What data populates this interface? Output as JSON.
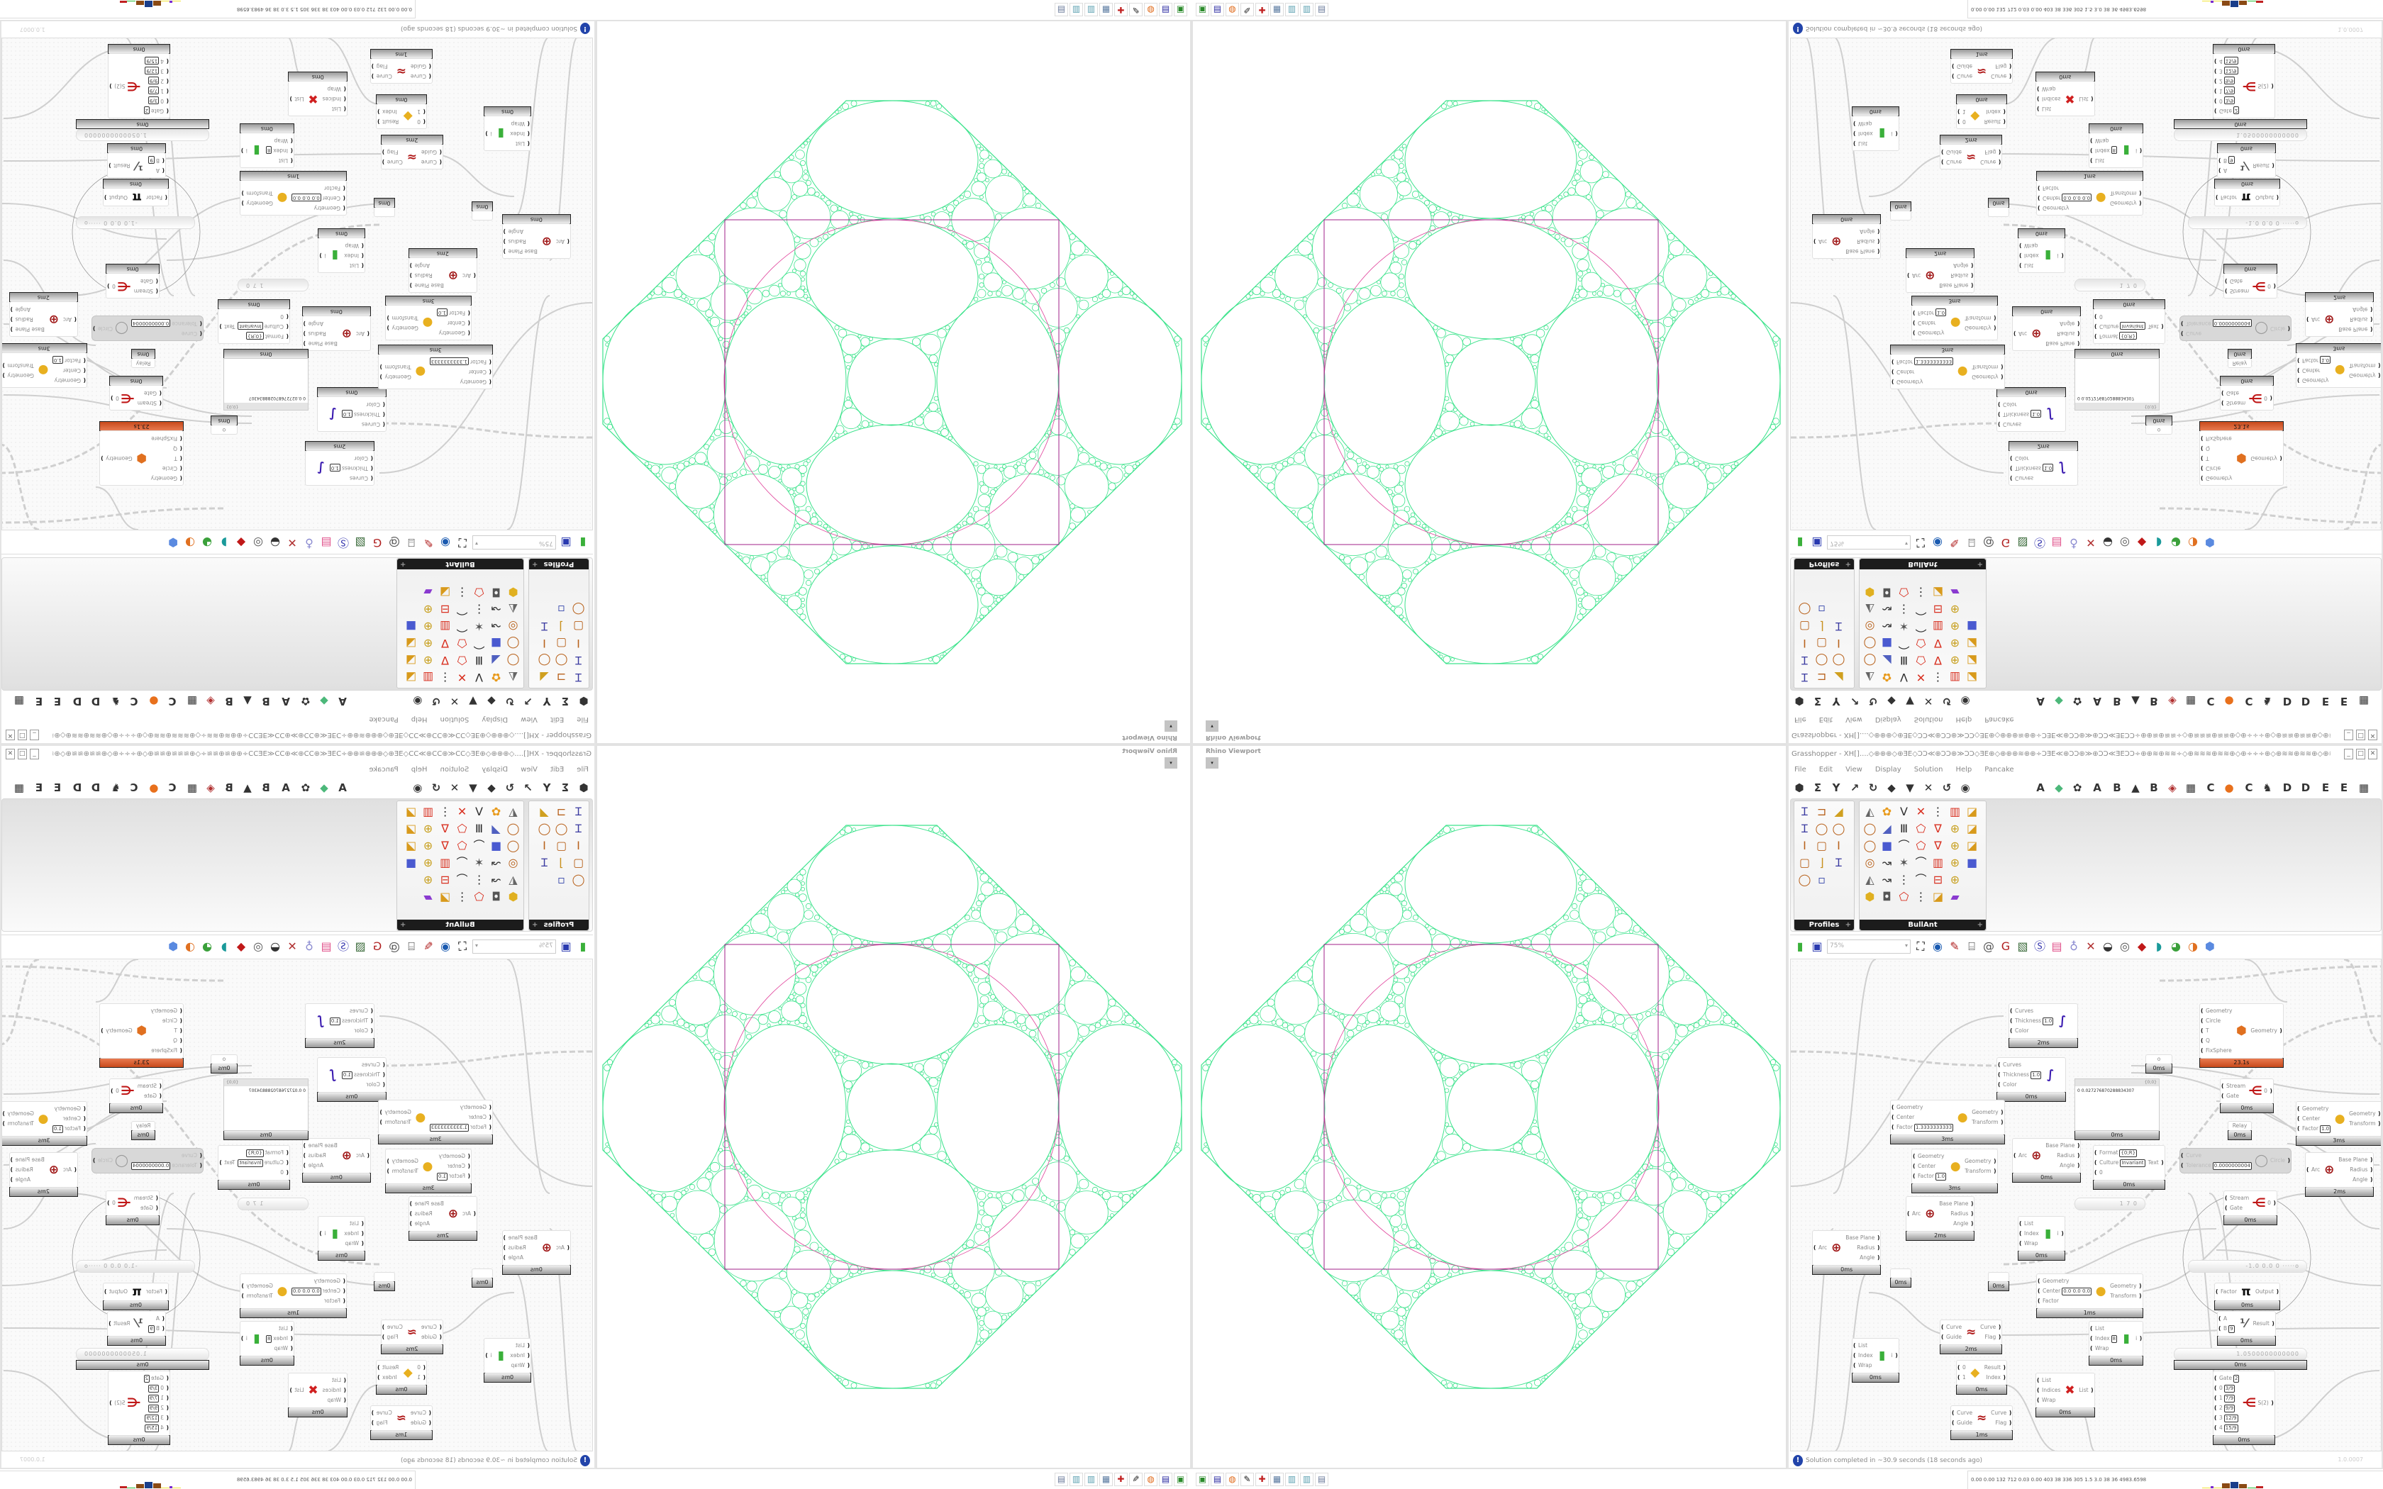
{
  "viewport": {
    "title": "Rhino Viewport",
    "dropdown": "▾"
  },
  "window": {
    "title": "Grasshopper - XH[]....◇⊕⊕⊕◇⊕ƎE◇ƆƆ≪⊕ƆƆ⊕≫ƆƆ◇ƎE⊕◇⊕⊕⊕≋⊕⊕÷ƆƎE≪⊕ƆƆ⊕≫⊕ƆƆ≪ƎEƆƆ÷⊕⊕≋⊕≋≋÷◇⊕≋≋≋⊕≋≋⊕◇⊕÷÷÷⊕◇⊕≋≋⊕≋≋⊕◇⊕≋≋⊕⊕÷ƆƎE≪⊕ƆƆ⊕⊕...",
    "buttons": {
      "minimize": "_",
      "maximize": "□",
      "close": "✕"
    }
  },
  "menu": [
    "File",
    "Edit",
    "View",
    "Display",
    "Solution",
    "Help",
    "Pancake"
  ],
  "tab_row": [
    {
      "icon": "hexagon-icon",
      "glyph": "⬢"
    },
    {
      "icon": "sigma-icon",
      "glyph": "Σ"
    },
    {
      "icon": "vector-icon",
      "glyph": "Y"
    },
    {
      "icon": "arrow-icon",
      "glyph": "↗"
    },
    {
      "icon": "curve-icon",
      "glyph": "↻"
    },
    {
      "icon": "surface-icon",
      "glyph": "◆"
    },
    {
      "icon": "mesh-icon",
      "glyph": "▼"
    },
    {
      "icon": "intersect-icon",
      "glyph": "✕"
    },
    {
      "icon": "transform-icon",
      "glyph": "↺"
    },
    {
      "icon": "display-icon",
      "glyph": "◉"
    },
    {
      "label": "A"
    },
    {
      "icon": "crystal-icon",
      "glyph": "◆"
    },
    {
      "icon": "kangaroo-paw-icon",
      "glyph": "✿"
    },
    {
      "label": "A"
    },
    {
      "label": "B"
    },
    {
      "icon": "mountain-icon",
      "glyph": "▲"
    },
    {
      "label": "B"
    },
    {
      "icon": "shield-icon",
      "glyph": "◈"
    },
    {
      "icon": "grid-icon",
      "glyph": "▦"
    },
    {
      "label": "C"
    },
    {
      "icon": "orange-circle-icon",
      "glyph": "●"
    },
    {
      "label": "C"
    },
    {
      "icon": "chicken-icon",
      "glyph": "♞"
    },
    {
      "label": "D"
    },
    {
      "label": "D"
    },
    {
      "label": "E"
    },
    {
      "label": "E"
    },
    {
      "icon": "grid-icon",
      "glyph": "▦"
    }
  ],
  "ribbon": {
    "profiles": {
      "label": "Profiles",
      "icons": [
        "section-tool",
        "c-channel",
        "hollow-section",
        "section-tool",
        "ring",
        "ring",
        "i-beam",
        "rect-tube",
        "i-beam",
        "rect-tube",
        "angle",
        "section-tool",
        "ring",
        "points"
      ]
    },
    "bullant": {
      "label": "BullAnt",
      "icons": [
        "box-cone",
        "flower",
        "split-v",
        "intersect",
        "segment",
        "frame",
        "panel",
        "ring",
        "plane",
        "columns",
        "polygon",
        "truss",
        "lock",
        "panel",
        "ring",
        "cube",
        "polyline",
        "polygon",
        "truss",
        "lock",
        "panel",
        "ring-ball",
        "curve-pt",
        "explode",
        "polyline",
        "frame",
        "lock",
        "cube",
        "box-cone",
        "curve-pt",
        "segment",
        "polyline",
        "frame-eq",
        "lock",
        "blank",
        "hex",
        "pad",
        "polygon",
        "segment",
        "panel",
        "rainbow",
        "blank"
      ]
    }
  },
  "canvas_toolbar": {
    "zoom": "75%",
    "items": [
      "new-file-icon",
      "save-icon",
      "zoom-extents-icon",
      "preview-icon",
      "sketch-icon",
      "cluster-icon",
      "at-icon",
      "gha-icon",
      "image-icon",
      "search-icon",
      "package-icon",
      "bulb-icon",
      "dna-icon",
      "shaded-icon",
      "wire-icon",
      "red-gem-icon",
      "teal-icon",
      "green-icon",
      "orange-sphere-icon",
      "blue-sphere-icon"
    ]
  },
  "canvas": {
    "nodes": [
      {
        "name": "custom-preview",
        "inputs": [
          "Curves",
          "Thickness",
          "Color"
        ],
        "outputs": [],
        "values": {
          "Thickness": "1.0"
        },
        "icon": "curve-display",
        "time": "2ms"
      },
      {
        "name": "custom-preview",
        "inputs": [
          "Curves",
          "Thickness",
          "Color"
        ],
        "outputs": [],
        "values": {
          "Thickness": "1.0"
        },
        "icon": "curve-display",
        "time": "0ms"
      },
      {
        "name": "scale",
        "inputs": [
          "Geometry",
          "Center",
          "Factor"
        ],
        "outputs": [
          "Geometry",
          "Transform"
        ],
        "values": {
          "Factor": "1.3333333333"
        },
        "icon": "scale",
        "time": "3ms"
      },
      {
        "name": "scale",
        "inputs": [
          "Geometry",
          "Center",
          "Factor"
        ],
        "outputs": [
          "Geometry",
          "Transform"
        ],
        "values": {
          "Factor": "1.0"
        },
        "icon": "scale",
        "time": "3ms"
      },
      {
        "name": "deconstruct-arc",
        "inputs": [
          "Arc"
        ],
        "outputs": [
          "Base Plane",
          "Radius",
          "Angle"
        ],
        "icon": "arc",
        "time": "0ms"
      },
      {
        "name": "deconstruct-arc",
        "inputs": [
          "Arc"
        ],
        "outputs": [
          "Base Plane",
          "Radius",
          "Angle"
        ],
        "icon": "arc",
        "time": "2ms"
      },
      {
        "name": "panel",
        "panel": {
          "header": "{0;0}",
          "text": "0  0.027276870288834307"
        },
        "time": "0ms"
      },
      {
        "name": "kangaroo-solver",
        "inputs": [
          "Geometry",
          "Circle",
          "T",
          "Q",
          "FixSphere"
        ],
        "outputs": [
          "Geometry"
        ],
        "icon": "kangaroo",
        "time": "23.1s",
        "state": "warning"
      },
      {
        "name": "relay",
        "label": "o",
        "time": "0ms"
      },
      {
        "name": "stream-gate",
        "inputs": [
          "Stream",
          "Gate"
        ],
        "outputs": [
          "0"
        ],
        "icon": "gate",
        "time": "0ms"
      },
      {
        "name": "relay",
        "label": "Relay",
        "time": "0ms"
      },
      {
        "name": "format",
        "inputs": [
          "Format",
          "Culture",
          "0"
        ],
        "outputs": [
          "Text"
        ],
        "values": {
          "Format": "{0;R}",
          "Culture": "Invariant"
        },
        "time": "0ms"
      },
      {
        "name": "fit-circle",
        "inputs": [
          "Curve",
          "Tolerance"
        ],
        "outputs": [
          "Circle"
        ],
        "values": {
          "Tolerance": "0.0000000004"
        },
        "icon": "circle",
        "state": "disabled"
      },
      {
        "name": "scale",
        "inputs": [
          "Geometry",
          "Center",
          "Factor"
        ],
        "outputs": [
          "Geometry",
          "Transform"
        ],
        "values": {
          "Factor": "1.0"
        },
        "icon": "scale",
        "time": "3ms"
      },
      {
        "name": "deconstruct-arc",
        "inputs": [
          "Arc"
        ],
        "outputs": [
          "Base Plane",
          "Radius",
          "Angle"
        ],
        "icon": "arc",
        "time": "2ms"
      },
      {
        "name": "stream-gate",
        "inputs": [
          "Stream",
          "Gate"
        ],
        "outputs": [
          "0"
        ],
        "icon": "gate",
        "time": "0ms"
      },
      {
        "name": "number-slider",
        "slider": "1 7 0"
      },
      {
        "name": "deconstruct-arc",
        "inputs": [
          "Arc"
        ],
        "outputs": [
          "Base Plane",
          "Radius",
          "Angle"
        ],
        "icon": "arc",
        "time": "0ms"
      },
      {
        "name": "relay",
        "label": "",
        "time": "0ms"
      },
      {
        "name": "relay",
        "label": "",
        "time": "0ms"
      },
      {
        "name": "list-item",
        "inputs": [
          "List",
          "Index",
          "Wrap"
        ],
        "outputs": [
          "i"
        ],
        "icon": "list-item",
        "time": "0ms"
      },
      {
        "name": "flip-curve",
        "inputs": [
          "Curve",
          "Guide"
        ],
        "outputs": [
          "Curve",
          "Flag"
        ],
        "icon": "flip-curve",
        "time": "2ms"
      },
      {
        "name": "stream-filter",
        "inputs": [
          "0",
          "1"
        ],
        "outputs": [
          "Result",
          "Index"
        ],
        "icon": "stream-filter",
        "time": "0ms"
      },
      {
        "name": "flip-curve",
        "inputs": [
          "Curve",
          "Guide"
        ],
        "outputs": [
          "Curve",
          "Flag"
        ],
        "icon": "flip-curve",
        "time": "1ms"
      },
      {
        "name": "cull-index",
        "inputs": [
          "List",
          "Indices",
          "Wrap"
        ],
        "outputs": [
          "List"
        ],
        "icon": "cull-index",
        "time": "0ms"
      },
      {
        "name": "list-item",
        "inputs": [
          "List",
          "Index",
          "Wrap"
        ],
        "outputs": [
          "i"
        ],
        "icon": "list-item",
        "time": "0ms"
      },
      {
        "name": "scale-nu",
        "inputs": [
          "Geometry",
          "Center",
          "Factor"
        ],
        "outputs": [
          "Geometry",
          "Transform"
        ],
        "values": {
          "Center": "0.0 0.0 0.0"
        },
        "icon": "scale",
        "time": "1ms"
      },
      {
        "name": "md-slider",
        "slider": "-1.0  0.0  0  ·····o"
      },
      {
        "name": "pi",
        "inputs": [
          "Factor"
        ],
        "outputs": [
          "Output"
        ],
        "icon": "pi",
        "time": "0ms"
      },
      {
        "name": "division",
        "inputs": [
          "A",
          "B"
        ],
        "outputs": [
          "Result"
        ],
        "values": {
          "B": "9"
        },
        "icon": "division",
        "time": "0ms"
      },
      {
        "name": "number-slider",
        "slider": "1.0500000000000",
        "time": "0ms"
      },
      {
        "name": "stream-gate",
        "inputs": [
          "Gate",
          "0",
          "1",
          "2",
          "3",
          "4"
        ],
        "outputs": [
          "S(2)"
        ],
        "values": {
          "Gate": "2",
          "0": "3/9",
          "1": "7/9",
          "2": "9/9",
          "3": "12/9",
          "4": "15/9"
        },
        "icon": "gate",
        "time": "0ms"
      },
      {
        "name": "list-item",
        "inputs": [
          "List",
          "Index",
          "Wrap"
        ],
        "outputs": [
          "i"
        ],
        "values": {
          "Index": "8"
        },
        "icon": "list-item",
        "time": "0ms"
      }
    ]
  },
  "status": {
    "text": "Solution completed in ~30.9 seconds (18 seconds ago)",
    "version": "1.0.0007",
    "icon": "info-icon"
  },
  "taskbar": [
    "sd-card-icon",
    "floppy-64-icon",
    "firefox-icon",
    "inkscape-icon",
    "red-app-icon",
    "calculator-icon",
    "notepad-icon",
    "notepad-icon",
    "document-icon"
  ],
  "stats": {
    "text": "0.00 0.00 132 712 0.03 0.00 403  38  336  305  1.5  3.0  38  36  4983.6598",
    "colors": [
      "#f2e43c",
      "#7a2bd0",
      "#f2e43c",
      "#8a4a14",
      "#1a3e8a",
      "#8a4a14",
      "#2bbf3a",
      "#c02020"
    ]
  },
  "colors": {
    "packing": "#3de38c",
    "frame": "#a0208a",
    "accent_warning": "#d8602c"
  }
}
